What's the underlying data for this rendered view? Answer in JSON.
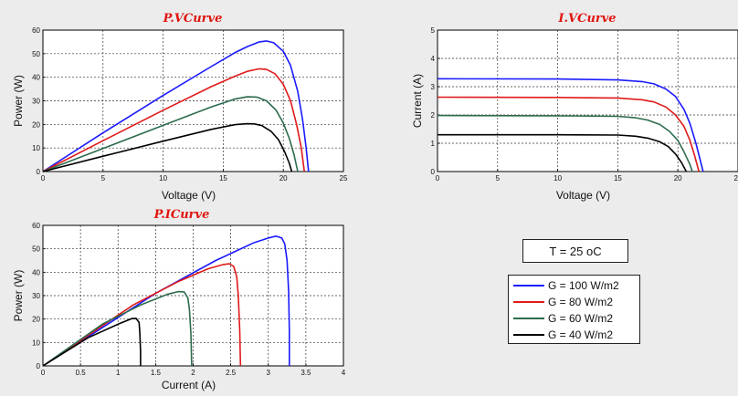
{
  "colors": {
    "g100": "#1a1aff",
    "g80": "#e01a1a",
    "g60": "#2d6b4d",
    "g40": "#000000",
    "title": "#e0150f",
    "grid": "#444444"
  },
  "temperature_label": "T = 25 oC",
  "chart_data": [
    {
      "id": "pv",
      "type": "line",
      "title": "P.VCurve",
      "xlabel": "Voltage (V)",
      "ylabel": "Power (W)",
      "xlim": [
        0,
        25
      ],
      "ylim": [
        0,
        60
      ],
      "xticks": [
        0,
        5,
        10,
        15,
        20,
        25
      ],
      "yticks": [
        0,
        10,
        20,
        30,
        40,
        50,
        60
      ],
      "grid": true,
      "series": [
        {
          "name": "G = 100 W/m2",
          "color": "#1a1aff",
          "points": [
            [
              0,
              0
            ],
            [
              5,
              16.4
            ],
            [
              10,
              32.3
            ],
            [
              14,
              44.5
            ],
            [
              16,
              50.5
            ],
            [
              17,
              53.0
            ],
            [
              18,
              55.0
            ],
            [
              18.6,
              55.4
            ],
            [
              19.2,
              54.6
            ],
            [
              20,
              51
            ],
            [
              20.6,
              45
            ],
            [
              21.2,
              34
            ],
            [
              21.6,
              22
            ],
            [
              21.9,
              10
            ],
            [
              22.1,
              0
            ]
          ]
        },
        {
          "name": "G = 80 W/m2",
          "color": "#e01a1a",
          "points": [
            [
              0,
              0
            ],
            [
              5,
              13.1
            ],
            [
              10,
              26
            ],
            [
              14,
              36
            ],
            [
              16,
              40.5
            ],
            [
              17,
              42.5
            ],
            [
              18,
              43.6
            ],
            [
              18.6,
              43.3
            ],
            [
              19.3,
              41.5
            ],
            [
              20,
              37
            ],
            [
              20.6,
              30
            ],
            [
              21.1,
              20
            ],
            [
              21.5,
              10
            ],
            [
              21.75,
              0
            ]
          ]
        },
        {
          "name": "G = 60 W/m2",
          "color": "#2d6b4d",
          "points": [
            [
              0,
              0
            ],
            [
              5,
              9.8
            ],
            [
              10,
              19.6
            ],
            [
              14,
              27.4
            ],
            [
              16,
              30.8
            ],
            [
              17,
              31.7
            ],
            [
              17.8,
              31.6
            ],
            [
              18.6,
              30
            ],
            [
              19.4,
              26
            ],
            [
              20,
              20.5
            ],
            [
              20.5,
              14
            ],
            [
              20.9,
              7
            ],
            [
              21.2,
              0
            ]
          ]
        },
        {
          "name": "G = 40 W/m2",
          "color": "#000000",
          "points": [
            [
              0,
              0
            ],
            [
              5,
              6.5
            ],
            [
              10,
              12.9
            ],
            [
              14,
              17.9
            ],
            [
              16,
              19.9
            ],
            [
              17,
              20.3
            ],
            [
              17.6,
              20.2
            ],
            [
              18.2,
              19.5
            ],
            [
              19,
              17
            ],
            [
              19.6,
              13.5
            ],
            [
              20.1,
              8.5
            ],
            [
              20.5,
              3.5
            ],
            [
              20.7,
              0
            ]
          ]
        }
      ]
    },
    {
      "id": "iv",
      "type": "line",
      "title": "I.VCurve",
      "xlabel": "Voltage (V)",
      "ylabel": "Current (A)",
      "xlim": [
        0,
        25
      ],
      "ylim": [
        0,
        5
      ],
      "xticks": [
        0,
        5,
        10,
        15,
        20,
        25
      ],
      "yticks": [
        0,
        1,
        2,
        3,
        4,
        5
      ],
      "grid": true,
      "series": [
        {
          "name": "G = 100 W/m2",
          "color": "#1a1aff",
          "points": [
            [
              0,
              3.28
            ],
            [
              10,
              3.27
            ],
            [
              15,
              3.24
            ],
            [
              17,
              3.18
            ],
            [
              18,
              3.1
            ],
            [
              19,
              2.92
            ],
            [
              19.8,
              2.65
            ],
            [
              20.5,
              2.2
            ],
            [
              21,
              1.7
            ],
            [
              21.5,
              1
            ],
            [
              21.8,
              0.5
            ],
            [
              22.1,
              0
            ]
          ]
        },
        {
          "name": "G = 80 W/m2",
          "color": "#e01a1a",
          "points": [
            [
              0,
              2.63
            ],
            [
              10,
              2.62
            ],
            [
              15,
              2.6
            ],
            [
              17,
              2.54
            ],
            [
              18,
              2.46
            ],
            [
              19,
              2.28
            ],
            [
              19.8,
              2.0
            ],
            [
              20.5,
              1.6
            ],
            [
              21,
              1.1
            ],
            [
              21.4,
              0.55
            ],
            [
              21.75,
              0
            ]
          ]
        },
        {
          "name": "G = 60 W/m2",
          "color": "#2d6b4d",
          "points": [
            [
              0,
              1.98
            ],
            [
              10,
              1.97
            ],
            [
              15,
              1.95
            ],
            [
              16.5,
              1.9
            ],
            [
              17.5,
              1.82
            ],
            [
              18.5,
              1.66
            ],
            [
              19.3,
              1.42
            ],
            [
              20,
              1.1
            ],
            [
              20.5,
              0.7
            ],
            [
              21,
              0.25
            ],
            [
              21.2,
              0
            ]
          ]
        },
        {
          "name": "G = 40 W/m2",
          "color": "#000000",
          "points": [
            [
              0,
              1.3
            ],
            [
              10,
              1.3
            ],
            [
              15,
              1.29
            ],
            [
              16.5,
              1.25
            ],
            [
              17.5,
              1.18
            ],
            [
              18.5,
              1.05
            ],
            [
              19.2,
              0.88
            ],
            [
              19.8,
              0.62
            ],
            [
              20.3,
              0.32
            ],
            [
              20.7,
              0
            ]
          ]
        }
      ]
    },
    {
      "id": "pi",
      "type": "line",
      "title": "P.ICurve",
      "xlabel": "Current (A)",
      "ylabel": "Power (W)",
      "xlim": [
        0,
        4
      ],
      "ylim": [
        0,
        60
      ],
      "xticks": [
        0,
        0.5,
        1,
        1.5,
        2,
        2.5,
        3,
        3.5,
        4
      ],
      "yticks": [
        0,
        10,
        20,
        30,
        40,
        50,
        60
      ],
      "grid": true,
      "series": [
        {
          "name": "G = 100 W/m2",
          "color": "#1a1aff",
          "points": [
            [
              0,
              0
            ],
            [
              1.5,
              31
            ],
            [
              2.3,
              45
            ],
            [
              2.8,
              52.5
            ],
            [
              3.0,
              54.6
            ],
            [
              3.1,
              55.4
            ],
            [
              3.18,
              54.6
            ],
            [
              3.22,
              52
            ],
            [
              3.25,
              45
            ],
            [
              3.27,
              32
            ],
            [
              3.28,
              15
            ],
            [
              3.28,
              0
            ]
          ]
        },
        {
          "name": "G = 80 W/m2",
          "color": "#e01a1a",
          "points": [
            [
              0,
              0
            ],
            [
              1.2,
              26
            ],
            [
              1.8,
              36
            ],
            [
              2.2,
              41.5
            ],
            [
              2.4,
              43.3
            ],
            [
              2.48,
              43.6
            ],
            [
              2.54,
              42.5
            ],
            [
              2.58,
              38
            ],
            [
              2.6,
              30
            ],
            [
              2.62,
              15
            ],
            [
              2.63,
              0
            ]
          ]
        },
        {
          "name": "G = 60 W/m2",
          "color": "#2d6b4d",
          "points": [
            [
              0,
              0
            ],
            [
              0.8,
              18
            ],
            [
              1.3,
              26
            ],
            [
              1.65,
              30.5
            ],
            [
              1.8,
              31.7
            ],
            [
              1.88,
              31.6
            ],
            [
              1.93,
              29
            ],
            [
              1.95,
              24
            ],
            [
              1.97,
              14
            ],
            [
              1.98,
              0
            ]
          ]
        },
        {
          "name": "G = 40 W/m2",
          "color": "#000000",
          "points": [
            [
              0,
              0
            ],
            [
              0.6,
              12
            ],
            [
              1.0,
              17.8
            ],
            [
              1.18,
              20.2
            ],
            [
              1.24,
              20.3
            ],
            [
              1.28,
              18.5
            ],
            [
              1.29,
              14
            ],
            [
              1.3,
              6
            ],
            [
              1.3,
              0
            ]
          ]
        }
      ]
    }
  ],
  "legend": [
    {
      "label": "G = 100 W/m2",
      "color": "#1a1aff"
    },
    {
      "label": "G = 80 W/m2",
      "color": "#e01a1a"
    },
    {
      "label": "G = 60 W/m2",
      "color": "#2d6b4d"
    },
    {
      "label": "G = 40 W/m2",
      "color": "#000000"
    }
  ]
}
